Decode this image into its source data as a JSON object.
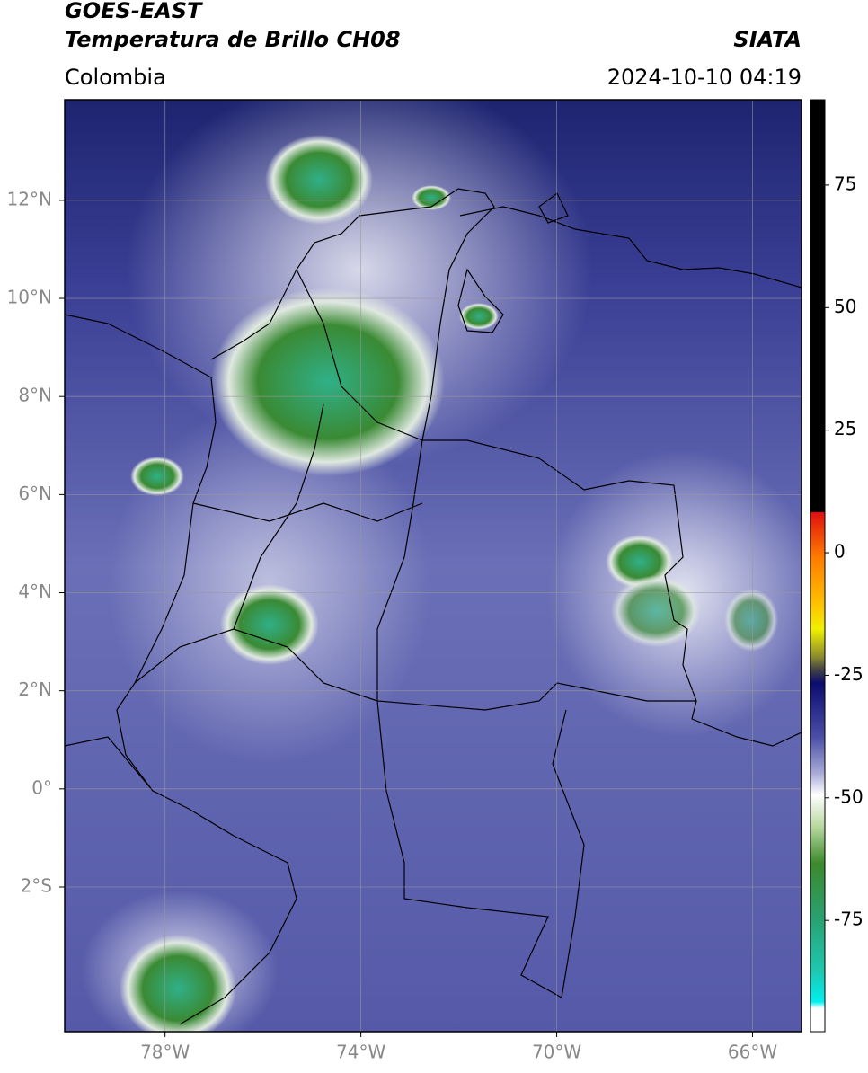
{
  "header": {
    "title_line1": "GOES-EAST",
    "title_line2": "Temperatura de Brillo CH08",
    "region": "Colombia",
    "source": "SIATA",
    "timestamp": "2024-10-10 04:19"
  },
  "map": {
    "lonlim": [
      -80.05,
      -65
    ],
    "latlim": [
      -4.95,
      14.05
    ],
    "grid": true,
    "lonticks": [
      {
        "value": -78,
        "label": "78°W"
      },
      {
        "value": -74,
        "label": "74°W"
      },
      {
        "value": -70,
        "label": "70°W"
      },
      {
        "value": -66,
        "label": "66°W"
      }
    ],
    "latticks": [
      {
        "value": 12,
        "label": "12°N"
      },
      {
        "value": 10,
        "label": "10°N"
      },
      {
        "value": 8,
        "label": "8°N"
      },
      {
        "value": 6,
        "label": "6°N"
      },
      {
        "value": 4,
        "label": "4°N"
      },
      {
        "value": 2,
        "label": "2°N"
      },
      {
        "value": 0,
        "label": "0°"
      },
      {
        "value": -2,
        "label": "2°S"
      }
    ]
  },
  "colorbar": {
    "lim": [
      -97.7,
      92.4
    ],
    "ticks": [
      75,
      50,
      25,
      0,
      -25,
      -50,
      -75
    ]
  }
}
